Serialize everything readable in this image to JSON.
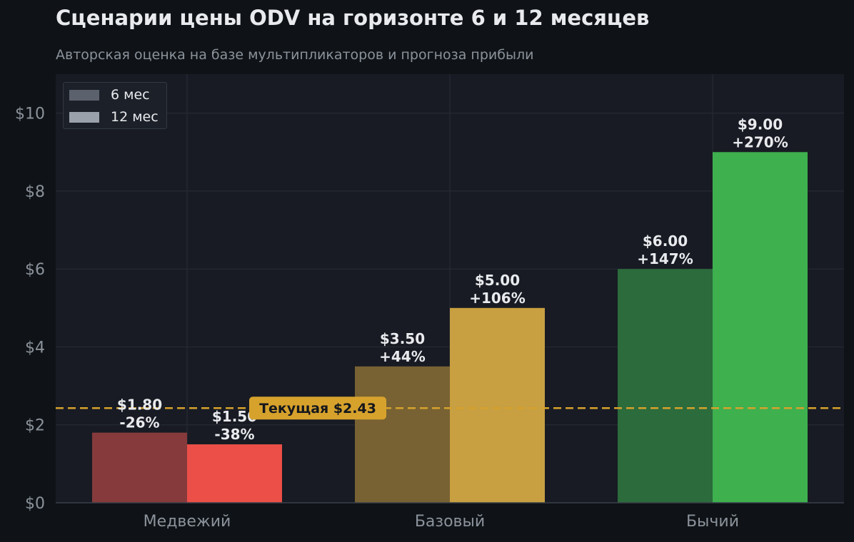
{
  "title": "Сценарии цены ODV на горизонте 6 и 12 месяцев",
  "subtitle": "Авторская оценка на базе мультипликаторов и прогноза прибыли",
  "colors": {
    "background": "#0f1317",
    "plot_background": "#181b23",
    "grid": "#262a33",
    "axis_text": "#8b929b",
    "label_text": "#e8eaed",
    "current_line": "#d7a22c",
    "legend_6m": "#5c626d",
    "legend_12m": "#9aa1aa"
  },
  "chart_data": {
    "type": "bar",
    "categories": [
      "Медвежий",
      "Базовый",
      "Бычий"
    ],
    "series": [
      {
        "name": "6 мес",
        "values": [
          1.8,
          3.5,
          6.0
        ],
        "labels": [
          "$1.80\n-26%",
          "$3.50\n+44%",
          "$6.00\n+147%"
        ],
        "colors": [
          "#863a3c",
          "#786233",
          "#2b6b3c"
        ]
      },
      {
        "name": "12 мес",
        "values": [
          1.5,
          5.0,
          9.0
        ],
        "labels": [
          "$1.50\n-38%",
          "$5.00\n+106%",
          "$9.00\n+270%"
        ],
        "colors": [
          "#eb4f48",
          "#c89f41",
          "#3eb04e"
        ]
      }
    ],
    "ylim": [
      0,
      11
    ],
    "yticks": [
      0,
      2,
      4,
      6,
      8,
      10
    ],
    "ytick_labels": [
      "$0",
      "$2",
      "$4",
      "$6",
      "$8",
      "$10"
    ],
    "grid": true,
    "legend_position": "top-left",
    "reference_line": {
      "value": 2.43,
      "label": "Текущая $2.43",
      "style": "dashed"
    }
  }
}
